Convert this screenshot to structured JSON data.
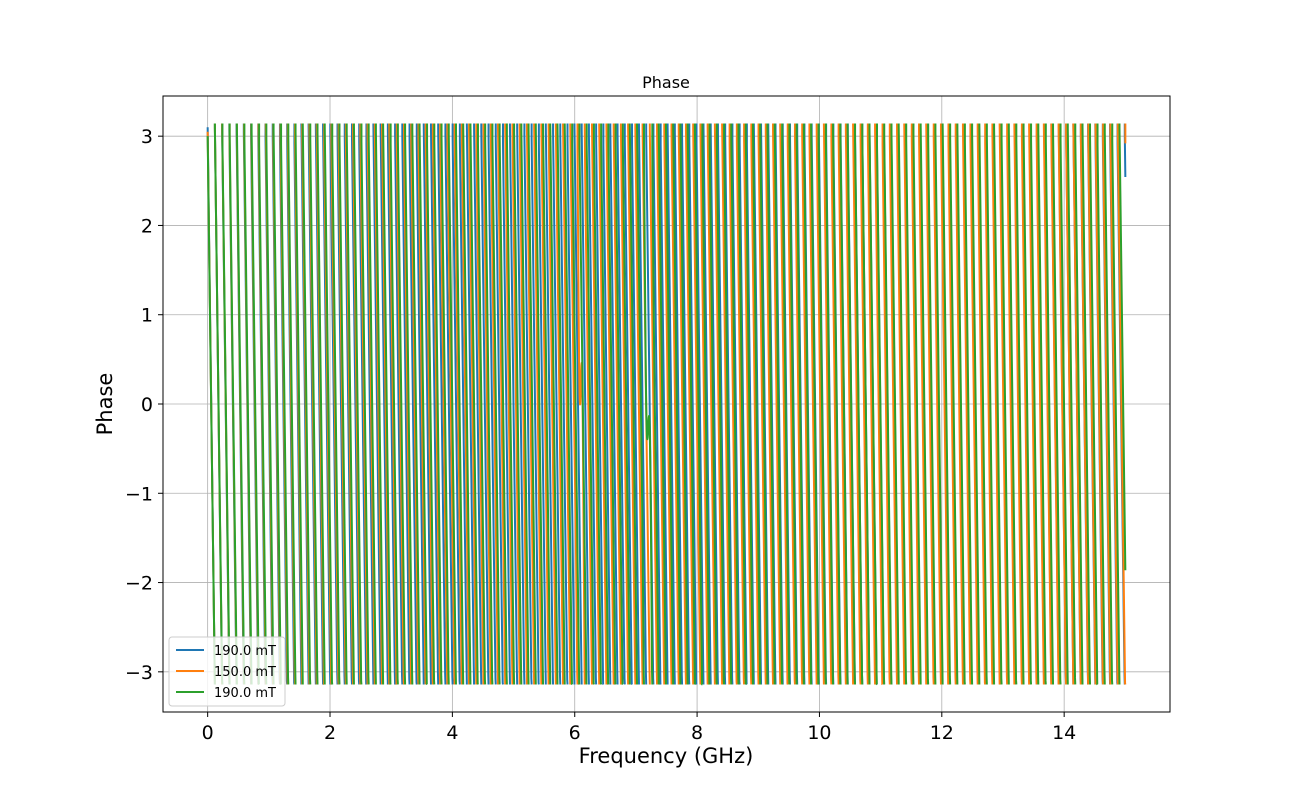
{
  "chart_data": {
    "type": "line",
    "title": "Phase",
    "xlabel": "Frequency (GHz)",
    "ylabel": "Phase",
    "xlim": [
      -0.73,
      15.73
    ],
    "ylim": [
      -3.45,
      3.45
    ],
    "xticks": [
      0,
      2,
      4,
      6,
      8,
      10,
      12,
      14
    ],
    "yticks": [
      -3,
      -2,
      -1,
      0,
      1,
      2,
      3
    ],
    "xtick_labels": [
      "0",
      "2",
      "4",
      "6",
      "8",
      "10",
      "12",
      "14"
    ],
    "ytick_labels": [
      "−3",
      "−2",
      "−1",
      "0",
      "1",
      "2",
      "3"
    ],
    "grid": true,
    "legend_position": "lower-left",
    "x_range": [
      0,
      15
    ],
    "wrap_interval": [
      -3.14159,
      3.14159
    ],
    "series": [
      {
        "name": "190.0 mT",
        "color": "#1f77b4",
        "start_phase": 3.1,
        "periods_ghz": [
          [
            0,
            0.118
          ],
          [
            7.0,
            0.117
          ],
          [
            15,
            0.12
          ]
        ],
        "features": []
      },
      {
        "name": "150.0 mT",
        "color": "#ff7f0e",
        "start_phase": 3.05,
        "periods_ghz": [
          [
            0,
            0.119
          ],
          [
            7.0,
            0.118
          ],
          [
            15,
            0.121
          ]
        ],
        "features": [
          {
            "center": 6.1,
            "width": 0.06,
            "amplitude": 1.6
          }
        ]
      },
      {
        "name": "190.0 mT",
        "color": "#2ca02c",
        "start_phase": 3.0,
        "periods_ghz": [
          [
            0,
            0.12
          ],
          [
            7.0,
            0.118
          ],
          [
            15,
            0.121
          ]
        ],
        "features": [
          {
            "center": 7.2,
            "width": 0.08,
            "amplitude": 1.8
          }
        ]
      }
    ],
    "samples_per_ghz": 220
  }
}
